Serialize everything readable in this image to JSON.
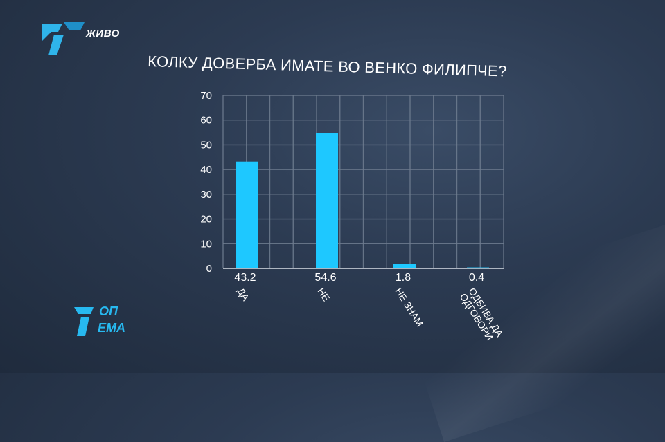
{
  "channel": {
    "live_label": "ЖИВО",
    "show_logo_line1": "ОП",
    "show_logo_line2": "ЕМА",
    "brand_color": "#29b6ef"
  },
  "chart_data": {
    "type": "bar",
    "title": "КОЛКУ ДОВЕРБА ИМАТЕ ВО ВЕНКО ФИЛИПЧЕ?",
    "categories": [
      "ДА",
      "НЕ",
      "НЕ ЗНАМ",
      "ОДБИВА ДА ОДГОВОРИ"
    ],
    "category_lines": [
      [
        "ДА"
      ],
      [
        "НЕ"
      ],
      [
        "НЕ ЗНАМ"
      ],
      [
        "ОДБИВА ДА",
        "ОДГОВОРИ"
      ]
    ],
    "values": [
      43.2,
      54.6,
      1.8,
      0.4
    ],
    "value_labels": [
      "43.2",
      "54.6",
      "1.8",
      "0.4"
    ],
    "ylim": [
      0,
      70
    ],
    "yticks": [
      0,
      10,
      20,
      30,
      40,
      50,
      60,
      70
    ],
    "grid": true,
    "bar_color": "#1ec8ff",
    "xlabel": "",
    "ylabel": ""
  }
}
